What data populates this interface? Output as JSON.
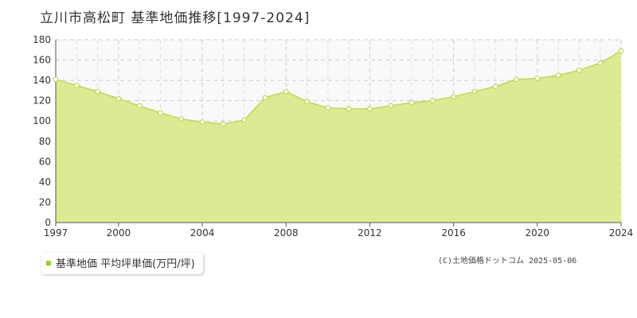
{
  "title": "立川市高松町 基準地価推移[1997-2024]",
  "legend_label": "基準地価 平均坪単価(万円/坪)",
  "credit": "(C)土地価格ドットコム 2025-05-06",
  "colors": {
    "fill": "#dcea93",
    "line": "#bcd85a",
    "marker": "#ffffff",
    "grid": "#cccccc"
  },
  "chart_data": {
    "type": "area",
    "title": "立川市高松町 基準地価推移[1997-2024]",
    "xlabel": "",
    "ylabel": "",
    "xlim": [
      1997,
      2024
    ],
    "ylim": [
      0,
      180
    ],
    "yticks": [
      0,
      20,
      40,
      60,
      80,
      100,
      120,
      140,
      160,
      180
    ],
    "xticks": [
      1997,
      2000,
      2004,
      2008,
      2012,
      2016,
      2020,
      2024
    ],
    "grid": true,
    "legend": "bottom-left",
    "series": [
      {
        "name": "基準地価 平均坪単価(万円/坪)",
        "x": [
          1997,
          1998,
          1999,
          2000,
          2001,
          2002,
          2003,
          2004,
          2005,
          2006,
          2007,
          2008,
          2009,
          2010,
          2011,
          2012,
          2013,
          2014,
          2015,
          2016,
          2017,
          2018,
          2019,
          2020,
          2021,
          2022,
          2023,
          2024
        ],
        "values": [
          141,
          135,
          129,
          122,
          115,
          108,
          102,
          99,
          97,
          101,
          123,
          129,
          119,
          113,
          112,
          112,
          115,
          118,
          120,
          124,
          129,
          134,
          141,
          142,
          145,
          150,
          157,
          169
        ]
      }
    ]
  }
}
